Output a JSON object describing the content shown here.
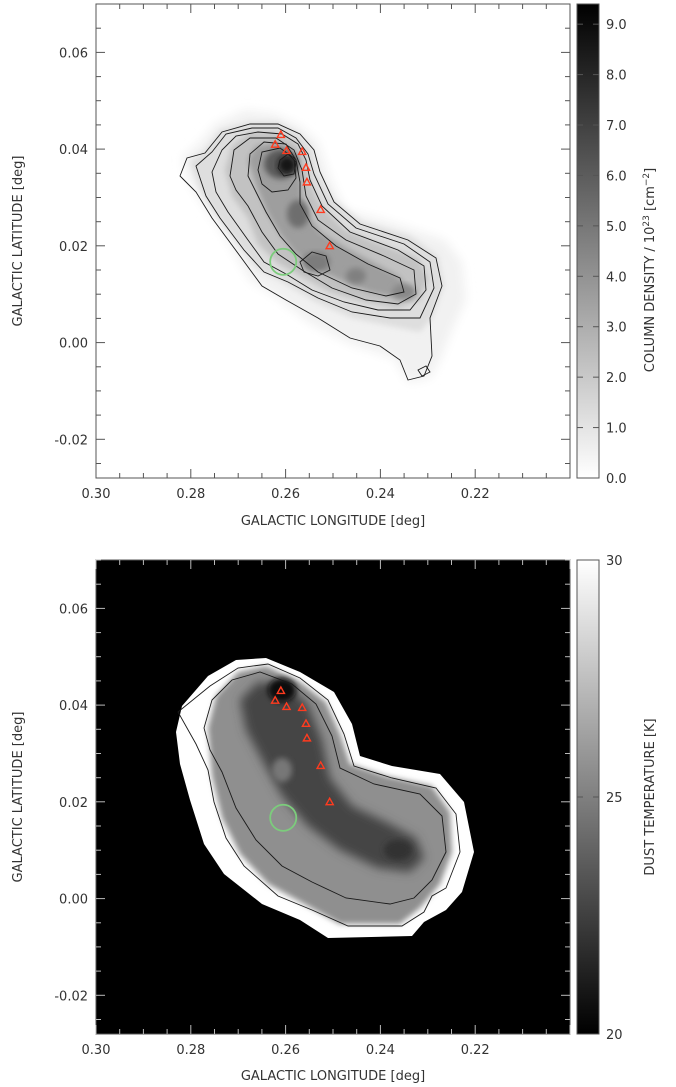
{
  "chart_data": [
    {
      "type": "heatmap",
      "xlabel": "GALACTIC LONGITUDE [deg]",
      "ylabel": "GALACTIC LATITUDE [deg]",
      "xlim": [
        0.3,
        0.2
      ],
      "ylim": [
        -0.028,
        0.07
      ],
      "x_ticks": [
        "0.30",
        "0.28",
        "0.26",
        "0.24",
        "0.22"
      ],
      "y_ticks": [
        "-0.02",
        "0.00",
        "0.02",
        "0.04",
        "0.06"
      ],
      "x_tick_values": [
        0.3,
        0.28,
        0.26,
        0.24,
        0.22
      ],
      "y_tick_values": [
        -0.02,
        0.0,
        0.02,
        0.04,
        0.06
      ],
      "colorbar": {
        "label": "COLUMN DENSITY / 10",
        "label_exponent": "23",
        "unit": "[cm",
        "unit_exponent": "−2",
        "unit_close": "]",
        "range": [
          0.0,
          9.4
        ],
        "ticks": [
          "0.0",
          "1.0",
          "2.0",
          "3.0",
          "4.0",
          "5.0",
          "6.0",
          "7.0",
          "8.0",
          "9.0"
        ],
        "tick_values": [
          0,
          1,
          2,
          3,
          4,
          5,
          6,
          7,
          8,
          9
        ],
        "colormap": "white-to-black"
      },
      "background": "#ffffff",
      "contours": true,
      "markers": {
        "shape": "triangle",
        "color": "#ff3b1f",
        "points": [
          [
            0.2622,
            0.041
          ],
          [
            0.261,
            0.043
          ],
          [
            0.2598,
            0.0397
          ],
          [
            0.2565,
            0.0395
          ],
          [
            0.2557,
            0.0362
          ],
          [
            0.2555,
            0.0332
          ],
          [
            0.2526,
            0.0275
          ],
          [
            0.2507,
            0.02
          ]
        ]
      },
      "circle": {
        "center": [
          0.2605,
          0.0167
        ],
        "radius_deg": 0.0027,
        "color": "#7ccc7c"
      }
    },
    {
      "type": "heatmap",
      "xlabel": "GALACTIC LONGITUDE [deg]",
      "ylabel": "GALACTIC LATITUDE [deg]",
      "xlim": [
        0.3,
        0.2
      ],
      "ylim": [
        -0.028,
        0.07
      ],
      "x_ticks": [
        "0.30",
        "0.28",
        "0.26",
        "0.24",
        "0.22"
      ],
      "y_ticks": [
        "-0.02",
        "0.00",
        "0.02",
        "0.04",
        "0.06"
      ],
      "x_tick_values": [
        0.3,
        0.28,
        0.26,
        0.24,
        0.22
      ],
      "y_tick_values": [
        -0.02,
        0.0,
        0.02,
        0.04,
        0.06
      ],
      "colorbar": {
        "label": "DUST TEMPERATURE [K]",
        "range": [
          20,
          30
        ],
        "ticks": [
          "20",
          "25",
          "30"
        ],
        "tick_values": [
          20,
          25,
          30
        ],
        "colormap": "black-to-white"
      },
      "background": "#000000",
      "contours": true,
      "markers": {
        "shape": "triangle",
        "color": "#ff3b1f",
        "points": [
          [
            0.2622,
            0.041
          ],
          [
            0.261,
            0.043
          ],
          [
            0.2598,
            0.0397
          ],
          [
            0.2565,
            0.0395
          ],
          [
            0.2557,
            0.0362
          ],
          [
            0.2555,
            0.0332
          ],
          [
            0.2526,
            0.0275
          ],
          [
            0.2507,
            0.02
          ]
        ]
      },
      "circle": {
        "center": [
          0.2605,
          0.0167
        ],
        "radius_deg": 0.0027,
        "color": "#7ccc7c"
      }
    }
  ]
}
